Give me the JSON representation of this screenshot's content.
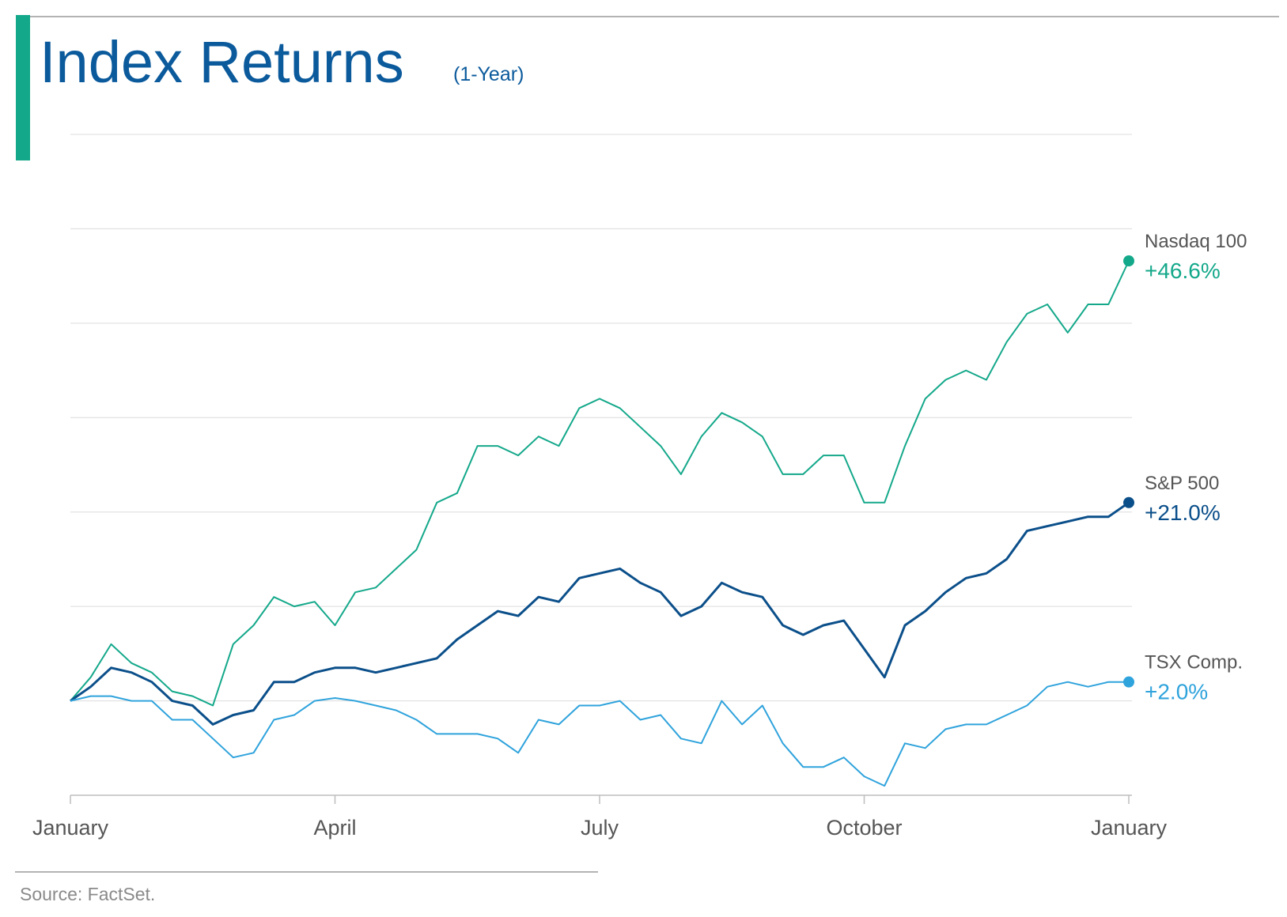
{
  "chart_data": {
    "type": "line",
    "title": "Index Returns",
    "subtitle": "(1-Year)",
    "source": "Source: FactSet.",
    "xlim": [
      0,
      52
    ],
    "xticks": [
      {
        "value": 0,
        "label": "January"
      },
      {
        "value": 13,
        "label": "April"
      },
      {
        "value": 26,
        "label": "July"
      },
      {
        "value": 39,
        "label": "October"
      },
      {
        "value": 52,
        "label": "January"
      }
    ],
    "ylim": [
      -10,
      60
    ],
    "yticks": [
      -10,
      0,
      10,
      20,
      30,
      40,
      50,
      60
    ],
    "grid": true,
    "series": [
      {
        "name": "Nasdaq 100",
        "color": "#14a88a",
        "end_label": "+46.6%",
        "values": [
          0,
          2.5,
          6,
          4,
          3,
          1,
          0.5,
          -0.5,
          6,
          8,
          11,
          10,
          10.5,
          8,
          11.5,
          12,
          14,
          16,
          21,
          22,
          27,
          27,
          26,
          28,
          27,
          31,
          32,
          31,
          29,
          27,
          24,
          28,
          30.5,
          29.5,
          28,
          24,
          24,
          26,
          26,
          21,
          21,
          27,
          32,
          34,
          35,
          34,
          38,
          41,
          42,
          39,
          42,
          42,
          46.6
        ]
      },
      {
        "name": "S&P 500",
        "color": "#0b4f8a",
        "end_label": "+21.0%",
        "values": [
          0,
          1.5,
          3.5,
          3,
          2,
          0,
          -0.5,
          -2.5,
          -1.5,
          -1,
          2,
          2,
          3,
          3.5,
          3.5,
          3,
          3.5,
          4,
          4.5,
          6.5,
          8,
          9.5,
          9,
          11,
          10.5,
          13,
          13.5,
          14,
          12.5,
          11.5,
          9,
          10,
          12.5,
          11.5,
          11,
          8,
          7,
          8,
          8.5,
          5.5,
          2.5,
          8,
          9.5,
          11.5,
          13,
          13.5,
          15,
          18,
          18.5,
          19,
          19.5,
          19.5,
          21.0
        ]
      },
      {
        "name": "TSX Comp.",
        "color": "#2fa3dc",
        "end_label": "+2.0%",
        "values": [
          0,
          0.5,
          0.5,
          0,
          0,
          -2,
          -2,
          -4,
          -6,
          -5.5,
          -2,
          -1.5,
          0,
          0.3,
          0,
          -0.5,
          -1,
          -2,
          -3.5,
          -3.5,
          -3.5,
          -4,
          -5.5,
          -2,
          -2.5,
          -0.5,
          -0.5,
          0,
          -2,
          -1.5,
          -4,
          -4.5,
          0,
          -2.5,
          -0.5,
          -4.5,
          -7,
          -7,
          -6,
          -8,
          -9,
          -4.5,
          -5,
          -3,
          -2.5,
          -2.5,
          -1.5,
          -0.5,
          1.5,
          2,
          1.5,
          2,
          2.0
        ]
      }
    ]
  }
}
